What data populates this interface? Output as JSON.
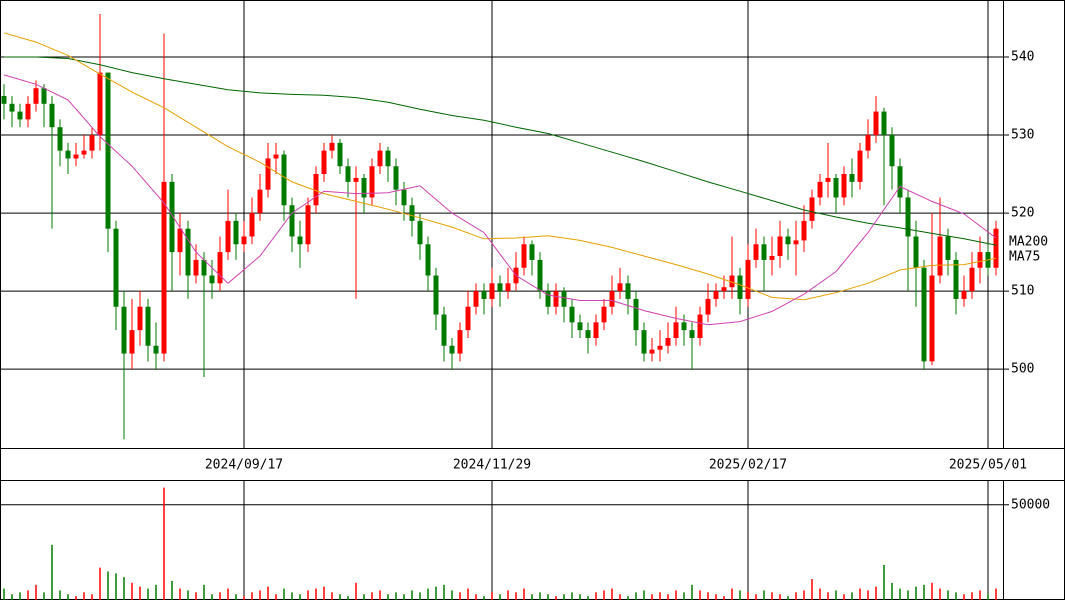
{
  "chart_data": {
    "type": "candlestick",
    "up_color": "#ff0000",
    "down_color": "#007a00",
    "xlim": [
      -0.5,
      124.875
    ],
    "xticks": [
      {
        "value": 30,
        "label": "2024/09/17"
      },
      {
        "value": 61,
        "label": "2024/11/29"
      },
      {
        "value": 93,
        "label": "2025/02/17"
      },
      {
        "value": 123,
        "label": "2025/05/01"
      }
    ],
    "ylim": [
      489.9,
      547.3
    ],
    "yticks": [
      500,
      510,
      520,
      530,
      540
    ],
    "grid": true,
    "candles": [
      [
        535,
        536.5,
        532,
        534
      ],
      [
        534,
        535,
        531,
        533
      ],
      [
        533,
        534,
        531,
        532
      ],
      [
        532,
        535,
        531,
        534
      ],
      [
        534,
        537,
        533,
        536
      ],
      [
        536,
        536.5,
        531,
        534
      ],
      [
        534,
        535,
        518,
        531
      ],
      [
        531,
        532,
        526,
        528
      ],
      [
        528,
        529,
        525,
        527
      ],
      [
        527,
        529,
        526,
        527.5
      ],
      [
        527.5,
        530,
        527,
        528
      ],
      [
        528,
        531,
        527,
        530
      ],
      [
        530,
        545.5,
        528,
        538
      ],
      [
        538,
        538,
        515,
        518
      ],
      [
        518,
        519,
        505,
        508
      ],
      [
        508,
        510,
        491,
        502
      ],
      [
        502,
        509,
        500,
        505
      ],
      [
        505,
        510,
        503,
        508
      ],
      [
        508,
        509,
        501,
        503
      ],
      [
        503,
        506,
        500,
        502
      ],
      [
        502,
        543,
        501,
        524
      ],
      [
        524,
        525,
        510,
        515
      ],
      [
        515,
        520,
        512,
        518
      ],
      [
        518,
        519,
        509,
        512
      ],
      [
        512,
        516,
        511,
        514
      ],
      [
        514,
        515,
        499,
        512
      ],
      [
        512,
        514,
        509,
        511
      ],
      [
        511,
        517,
        510,
        515
      ],
      [
        515,
        523,
        514,
        519
      ],
      [
        519,
        520,
        514,
        516
      ],
      [
        516,
        519,
        515,
        517
      ],
      [
        517,
        522,
        516,
        520
      ],
      [
        520,
        525,
        519,
        523
      ],
      [
        523,
        529,
        522,
        527
      ],
      [
        527,
        529,
        525,
        527.5
      ],
      [
        527.5,
        528,
        519,
        521
      ],
      [
        521,
        522,
        515,
        517
      ],
      [
        517,
        519,
        513,
        516
      ],
      [
        516,
        522,
        515,
        521
      ],
      [
        521,
        526,
        520,
        525
      ],
      [
        525,
        529,
        524,
        528
      ],
      [
        528,
        530,
        527,
        529
      ],
      [
        529,
        529.5,
        525,
        526
      ],
      [
        526,
        527,
        522,
        524
      ],
      [
        524,
        526,
        509,
        524.5
      ],
      [
        524.5,
        525,
        520,
        522
      ],
      [
        522,
        527,
        521,
        526
      ],
      [
        526,
        529,
        525,
        528
      ],
      [
        528,
        528.5,
        524,
        526
      ],
      [
        526,
        527,
        521,
        523
      ],
      [
        523,
        524,
        519,
        521
      ],
      [
        521,
        522,
        517,
        519
      ],
      [
        519,
        520,
        514,
        516
      ],
      [
        516,
        517,
        510,
        512
      ],
      [
        512,
        513,
        505,
        507
      ],
      [
        507,
        508,
        501,
        503
      ],
      [
        503,
        504,
        500,
        502
      ],
      [
        502,
        506,
        501,
        505
      ],
      [
        505,
        510,
        504,
        508
      ],
      [
        508,
        511,
        507,
        510
      ],
      [
        510,
        511,
        507,
        509
      ],
      [
        509,
        513,
        508,
        511
      ],
      [
        511,
        512,
        508,
        510
      ],
      [
        510,
        513,
        509,
        511
      ],
      [
        511,
        515,
        510,
        513
      ],
      [
        513,
        517,
        512,
        516
      ],
      [
        516,
        516.5,
        512,
        514
      ],
      [
        514,
        515,
        509,
        510
      ],
      [
        510,
        511,
        507,
        508
      ],
      [
        508,
        511,
        507,
        510
      ],
      [
        510,
        510.5,
        506,
        508
      ],
      [
        508,
        509,
        504,
        506
      ],
      [
        506,
        507,
        504,
        505
      ],
      [
        505,
        506,
        502,
        504
      ],
      [
        504,
        507,
        503,
        506
      ],
      [
        506,
        509,
        505,
        508
      ],
      [
        508,
        512,
        507,
        510
      ],
      [
        510,
        513,
        509,
        511
      ],
      [
        511,
        512,
        507,
        509
      ],
      [
        509,
        510,
        503,
        505
      ],
      [
        505,
        506,
        501,
        502
      ],
      [
        502,
        504,
        501,
        502.5
      ],
      [
        502.5,
        505,
        501,
        503
      ],
      [
        503,
        506,
        502,
        504
      ],
      [
        504,
        508,
        503,
        506
      ],
      [
        506,
        507,
        503,
        505
      ],
      [
        505,
        506,
        500,
        504
      ],
      [
        504,
        508,
        503,
        507
      ],
      [
        507,
        511,
        506,
        509
      ],
      [
        509,
        511,
        508,
        510
      ],
      [
        510,
        512,
        509,
        510.5
      ],
      [
        510.5,
        517,
        509,
        512
      ],
      [
        512,
        513,
        507,
        509
      ],
      [
        509,
        516,
        508,
        514
      ],
      [
        514,
        518,
        513,
        516
      ],
      [
        516,
        517,
        510,
        514
      ],
      [
        514,
        517,
        512,
        514.5
      ],
      [
        514.5,
        519,
        513,
        517
      ],
      [
        517,
        518,
        514,
        516
      ],
      [
        516,
        519,
        512,
        516.5
      ],
      [
        516.5,
        521,
        515,
        519
      ],
      [
        519,
        523,
        518,
        522
      ],
      [
        522,
        525,
        521,
        524
      ],
      [
        524,
        529,
        522,
        524.5
      ],
      [
        524.5,
        525,
        520,
        522
      ],
      [
        522,
        526,
        521,
        525
      ],
      [
        525,
        527,
        522,
        524
      ],
      [
        524,
        529,
        523,
        528
      ],
      [
        528,
        532,
        527,
        530
      ],
      [
        530,
        535,
        529,
        533
      ],
      [
        533,
        533.5,
        521,
        530
      ],
      [
        530,
        531,
        523,
        526
      ],
      [
        526,
        527,
        520,
        522
      ],
      [
        522,
        523,
        510,
        517
      ],
      [
        517,
        519,
        508,
        513
      ],
      [
        513,
        514,
        500,
        501
      ],
      [
        501,
        520,
        500.5,
        512
      ],
      [
        512,
        522,
        511,
        517
      ],
      [
        517,
        518,
        512,
        514
      ],
      [
        514,
        515,
        507,
        509
      ],
      [
        509,
        512,
        508,
        510
      ],
      [
        510,
        515,
        509,
        513
      ],
      [
        513,
        517,
        511,
        515
      ],
      [
        515,
        516,
        512,
        513
      ],
      [
        513,
        519,
        512,
        518
      ]
    ],
    "ma_lines": {
      "x": [
        0,
        4,
        8,
        12,
        16,
        20,
        24,
        28,
        32,
        36,
        40,
        44,
        48,
        52,
        56,
        60,
        64,
        68,
        72,
        76,
        80,
        84,
        88,
        92,
        96,
        100,
        104,
        108,
        112,
        116,
        120,
        124
      ],
      "series": [
        {
          "name": "MA200",
          "color": "#006400",
          "values": [
            540,
            540,
            539.8,
            539,
            538,
            537.2,
            536.5,
            535.8,
            535.4,
            535.2,
            535.1,
            534.8,
            534.2,
            533.3,
            532.5,
            531.9,
            531,
            530.2,
            529,
            527.8,
            526.6,
            525.3,
            524,
            522.8,
            521.6,
            520.4,
            519.5,
            518.7,
            518.1,
            517.4,
            516.7,
            515.9
          ]
        },
        {
          "name": "MA75",
          "color": "#e6a000",
          "values": [
            543.1,
            541.9,
            540.2,
            537.8,
            535.5,
            533.5,
            531,
            528.5,
            526.5,
            524,
            522.5,
            521.5,
            520.5,
            519.4,
            518.2,
            516.7,
            516.8,
            517.1,
            516.5,
            515.6,
            514.5,
            513.4,
            512.2,
            510.8,
            509.2,
            508.9,
            509.8,
            511,
            512.7,
            513.3,
            513.4,
            514.2
          ]
        },
        {
          "color": "#d040b0",
          "values": [
            537.7,
            536.5,
            534.5,
            529.8,
            526,
            521.3,
            515,
            511,
            514.5,
            520,
            522.8,
            522.5,
            522.6,
            523.5,
            520,
            517.5,
            512,
            509.5,
            508.8,
            508.8,
            507.5,
            506.5,
            505.7,
            506.1,
            507.4,
            509.6,
            512.5,
            517.5,
            523.4,
            521.5,
            519.9,
            516.8
          ]
        }
      ]
    },
    "volume": {
      "ylim": [
        0,
        63000
      ],
      "yticks": [
        50000
      ],
      "values": [
        6000,
        3000,
        4000,
        5000,
        8000,
        4000,
        29000,
        5000,
        3000,
        2000,
        4000,
        3000,
        17000,
        15000,
        14000,
        12000,
        9000,
        7000,
        6000,
        8000,
        59000,
        10000,
        6000,
        5000,
        4000,
        8000,
        3000,
        4000,
        6000,
        3000,
        2000,
        4000,
        5000,
        7000,
        3000,
        6000,
        4000,
        3000,
        5000,
        6000,
        7000,
        4000,
        3000,
        2000,
        9000,
        3000,
        4000,
        5000,
        3000,
        4000,
        3000,
        5000,
        4000,
        6000,
        7000,
        8000,
        5000,
        4000,
        6000,
        3000,
        2000,
        4000,
        3000,
        5000,
        4000,
        6000,
        3000,
        4000,
        3000,
        2000,
        3000,
        4000,
        3000,
        2000,
        4000,
        5000,
        6000,
        3000,
        2000,
        4000,
        5000,
        3000,
        4000,
        3000,
        5000,
        4000,
        8000,
        5000,
        4000,
        3000,
        2000,
        6000,
        5000,
        4000,
        3000,
        5000,
        4000,
        3000,
        2000,
        4000,
        5000,
        11000,
        6000,
        4000,
        5000,
        3000,
        4000,
        6000,
        5000,
        7000,
        18400,
        9000,
        6000,
        5000,
        7000,
        8000,
        9000,
        6000,
        5000,
        4000,
        3000,
        4000,
        5000,
        3000,
        6000
      ]
    }
  }
}
